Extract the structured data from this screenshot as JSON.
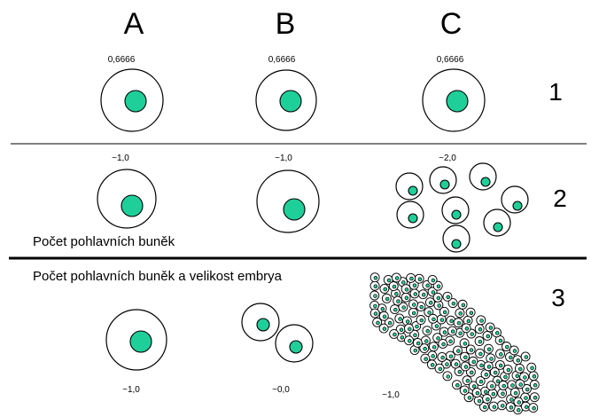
{
  "columns": [
    "A",
    "B",
    "C"
  ],
  "rows": [
    "1",
    "2",
    "3"
  ],
  "row1": {
    "values": [
      "0,6666",
      "0,6666",
      "0,6666"
    ]
  },
  "row2": {
    "values": [
      "~1,0",
      "~1,0",
      "~2,0"
    ],
    "caption": "Počet pohlavních buněk"
  },
  "row3": {
    "values": [
      "~1,0",
      "~0,0",
      "~1,0"
    ],
    "caption": "Počet pohlavních buněk a velikost embrya"
  },
  "colors": {
    "nucleus": "#1fcf9a",
    "cell": "#ffffff",
    "outline": "#000000"
  }
}
